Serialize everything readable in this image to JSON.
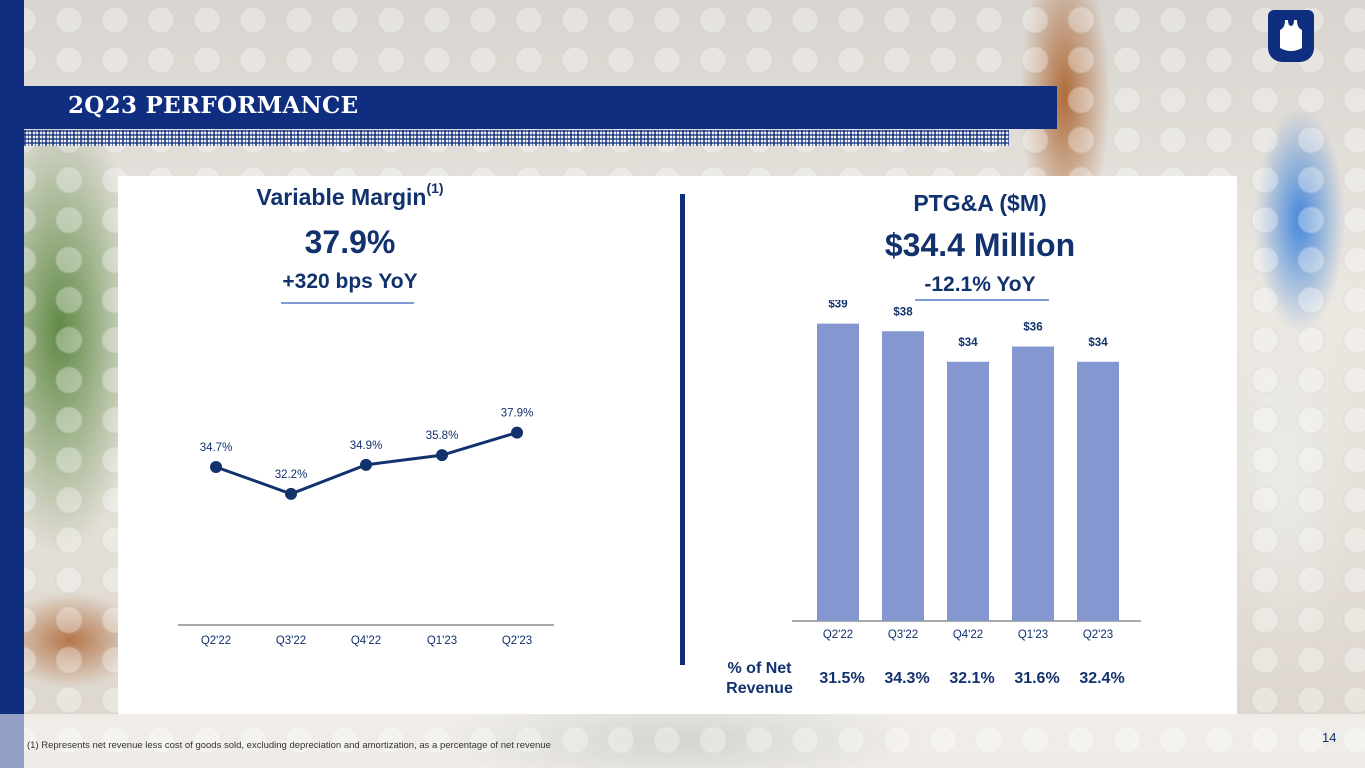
{
  "header": {
    "title": "2Q23 PERFORMANCE"
  },
  "variable_margin": {
    "title": "Variable Margin",
    "title_superscript": "(1)",
    "value": "37.9%",
    "change": "+320 bps YoY"
  },
  "ptga": {
    "title": "PTG&A ($M)",
    "value": "$34.4 Million",
    "change": "-12.1% YoY"
  },
  "pct_net_revenue": {
    "label_line1": "% of Net",
    "label_line2": "Revenue",
    "values": [
      "31.5%",
      "34.3%",
      "32.1%",
      "31.6%",
      "32.4%"
    ]
  },
  "footer": {
    "footnote": "(1) Represents net revenue less cost of goods sold, excluding depreciation and amortization, as a percentage of net revenue",
    "page_number": "14"
  },
  "colors": {
    "navy": "#0f2e7f",
    "text_navy": "#12326e",
    "bar": "#8497d1",
    "line": "#12326e"
  },
  "chart_data": [
    {
      "type": "line",
      "title": "Variable Margin",
      "categories": [
        "Q2'22",
        "Q3'22",
        "Q4'22",
        "Q1'23",
        "Q2'23"
      ],
      "values": [
        34.7,
        32.2,
        34.9,
        35.8,
        37.9
      ],
      "labels": [
        "34.7%",
        "32.2%",
        "34.9%",
        "35.8%",
        "37.9%"
      ],
      "ylim": [
        20,
        40
      ],
      "xlabel": "",
      "ylabel": ""
    },
    {
      "type": "bar",
      "title": "PTG&A ($M)",
      "categories": [
        "Q2'22",
        "Q3'22",
        "Q4'22",
        "Q1'23",
        "Q2'23"
      ],
      "values": [
        39,
        38,
        34,
        36,
        34
      ],
      "labels": [
        "$39",
        "$38",
        "$34",
        "$36",
        "$34"
      ],
      "ylim": [
        0,
        40
      ],
      "xlabel": "",
      "ylabel": ""
    }
  ]
}
